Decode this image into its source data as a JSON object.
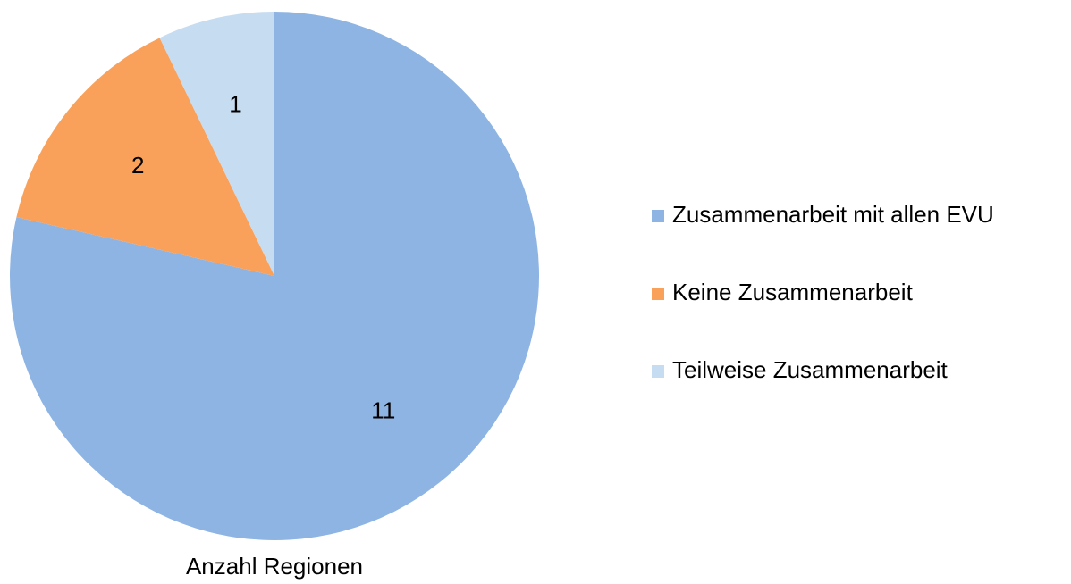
{
  "chart_data": {
    "type": "pie",
    "title": "Anzahl Regionen",
    "categories": [
      "Zusammenarbeit mit allen EVU",
      "Keine Zusammenarbeit",
      "Teilweise Zusammenarbeit"
    ],
    "values": [
      11,
      2,
      1
    ],
    "colors": [
      "#8eb4e3",
      "#f9a15a",
      "#c6dcf1"
    ],
    "legend": "right"
  }
}
